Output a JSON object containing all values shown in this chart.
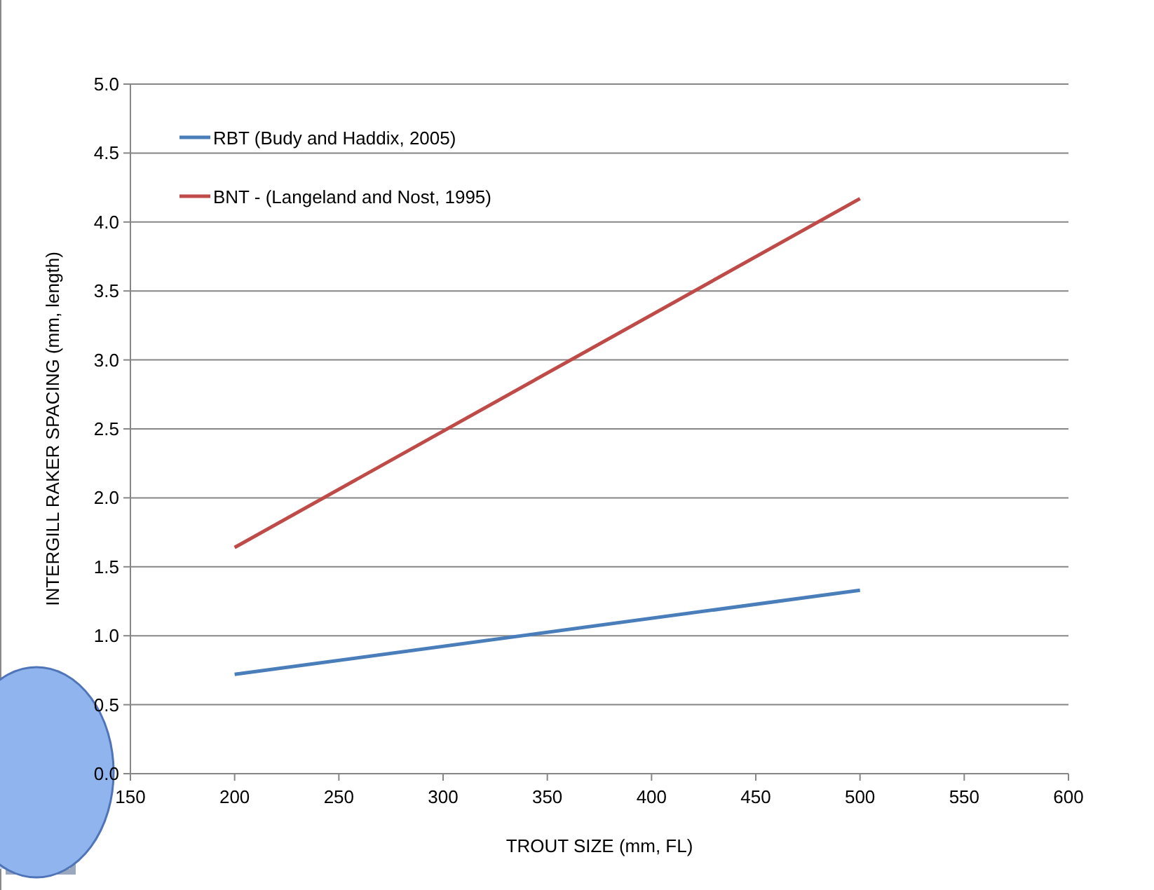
{
  "chart_data": {
    "type": "line",
    "xlabel": "TROUT SIZE (mm, FL)",
    "ylabel": "INTERGILL RAKER SPACING (mm, length)",
    "xlim": [
      150,
      600
    ],
    "xticks": [
      150,
      200,
      250,
      300,
      350,
      400,
      450,
      500,
      550,
      600
    ],
    "ylim": [
      0,
      5
    ],
    "yticks": [
      {
        "value": 0,
        "label": "0.0"
      },
      {
        "value": 0.5,
        "label": "0.5"
      },
      {
        "value": 1,
        "label": "1.0"
      },
      {
        "value": 1.5,
        "label": "1.5"
      },
      {
        "value": 2,
        "label": "2.0"
      },
      {
        "value": 2.5,
        "label": "2.5"
      },
      {
        "value": 3,
        "label": "3.0"
      },
      {
        "value": 3.5,
        "label": "3.5"
      },
      {
        "value": 4,
        "label": "4.0"
      },
      {
        "value": 4.5,
        "label": "4.5"
      },
      {
        "value": 5,
        "label": "5.0"
      }
    ],
    "x": [
      200,
      500
    ],
    "grid": "y",
    "legend": "top left",
    "marker": "none",
    "line_style": "solid",
    "series": [
      {
        "name": "RBT (Budy and Haddix, 2005)",
        "color": "#4a7ebb",
        "values": [
          0.72,
          1.33
        ]
      },
      {
        "name": "BNT - (Langeland and Nost, 1995)",
        "color": "#be4b48",
        "values": [
          1.64,
          4.17
        ]
      }
    ]
  }
}
